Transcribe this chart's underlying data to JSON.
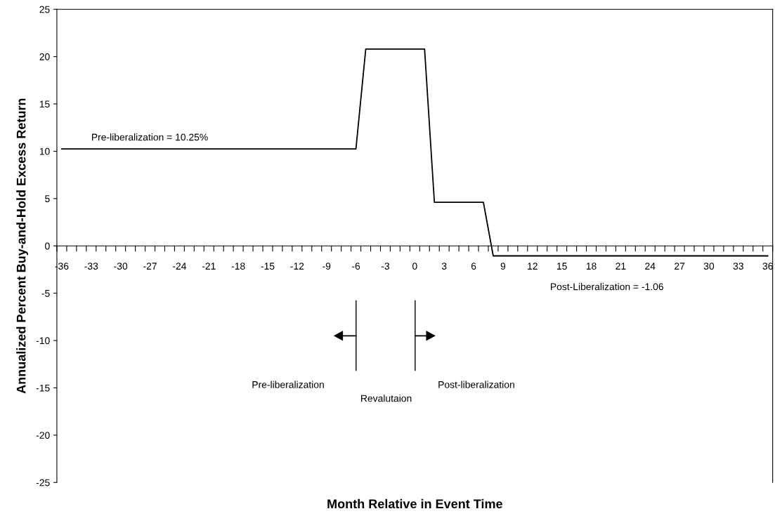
{
  "chart_data": {
    "type": "line",
    "xlabel": "Month Relative in Event Time",
    "ylabel": "Annualized Percent Buy-and-Hold Excess Return",
    "categories": [
      "-36",
      null,
      null,
      "-33",
      null,
      null,
      "-30",
      null,
      null,
      "-27",
      null,
      null,
      "-24",
      null,
      null,
      "-21",
      null,
      null,
      "-18",
      null,
      null,
      "-15",
      null,
      null,
      "-12",
      null,
      null,
      "-9",
      null,
      null,
      "-6",
      null,
      null,
      "-3",
      null,
      null,
      "0",
      null,
      null,
      "3",
      null,
      null,
      "6",
      null,
      null,
      "9",
      null,
      null,
      "12",
      null,
      null,
      "15",
      null,
      null,
      "18",
      null,
      null,
      "21",
      null,
      null,
      "24",
      null,
      null,
      "27",
      null,
      null,
      "30",
      null,
      null,
      "33",
      null,
      null,
      "36"
    ],
    "series": [
      {
        "color": "#000000",
        "values": [
          10.25,
          10.25,
          10.25,
          10.25,
          10.25,
          10.25,
          10.25,
          10.25,
          10.25,
          10.25,
          10.25,
          10.25,
          10.25,
          10.25,
          10.25,
          10.25,
          10.25,
          10.25,
          10.25,
          10.25,
          10.25,
          10.25,
          10.25,
          10.25,
          10.25,
          10.25,
          10.25,
          10.25,
          10.25,
          10.25,
          10.25,
          20.8,
          20.8,
          20.8,
          20.8,
          20.8,
          20.8,
          20.8,
          4.6,
          4.6,
          4.6,
          4.6,
          4.6,
          4.6,
          -1.06,
          -1.06,
          -1.06,
          -1.06,
          -1.06,
          -1.06,
          -1.06,
          -1.06,
          -1.06,
          -1.06,
          -1.06,
          -1.06,
          -1.06,
          -1.06,
          -1.06,
          -1.06,
          -1.06,
          -1.06,
          -1.06,
          -1.06,
          -1.06,
          -1.06,
          -1.06,
          -1.06,
          -1.06,
          -1.06,
          -1.06,
          -1.06,
          -1.06
        ]
      }
    ],
    "ylim": [
      -25,
      25
    ],
    "yticks": [
      -25,
      -20,
      -15,
      -10,
      -5,
      0,
      5,
      10,
      15,
      20,
      25
    ],
    "grid": false,
    "legend": false,
    "marker": "none",
    "line_style": "solid",
    "annotations": [
      "Pre-liberalization = 10.25%",
      "Post-Liberalization = -1.06",
      "Pre-liberalization",
      "Revalutaion",
      "Post-liberalization"
    ]
  }
}
